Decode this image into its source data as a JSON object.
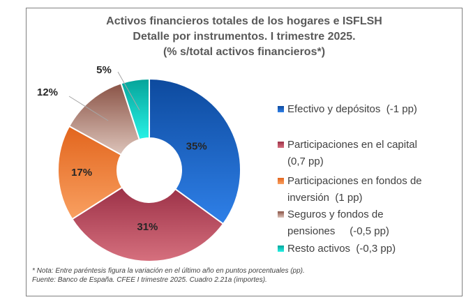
{
  "footnote": "* Nota: Entre paréntesis figura la variación en el último año en puntos porcentuales (pp).\nFuente: Banco de España. CFEE I trimestre 2025. Cuadro 2.21a (importes).",
  "colors": {
    "title_text": "#595959",
    "legend_text": "#404040",
    "pct_label_text": "#262626",
    "panel_border": "#808080",
    "leader_line": "#a6a6a6",
    "background": "#ffffff"
  },
  "chart_data": {
    "type": "pie",
    "variant": "donut",
    "title": "Activos financieros totales de los hogares e ISFLSH\nDetalle por instrumentos. I trimestre 2025.\n(% s/total activos financieros*)",
    "unit": "% s/total activos financieros",
    "legend_position": "right",
    "start_angle_deg": 0,
    "direction": "clockwise",
    "slices": [
      {
        "name": "Efectivo y depósitos",
        "value": 35,
        "pct_label": "35%",
        "variation": "-1 pp",
        "legend_label": "Efectivo y depósitos  (-1 pp)",
        "color_top": "#0d4a9e",
        "color_bottom": "#2f80e8"
      },
      {
        "name": "Participaciones en el capital",
        "value": 31,
        "pct_label": "31%",
        "variation": "0,7 pp",
        "legend_label": "Participaciones en el capital\n(0,7 pp)",
        "color_top": "#9c3147",
        "color_bottom": "#d6707e"
      },
      {
        "name": "Participaciones en fondos de inversión",
        "value": 17,
        "pct_label": "17%",
        "variation": "1 pp",
        "legend_label": "Participaciones en fondos de\ninversión  (1 pp)",
        "color_top": "#e2651d",
        "color_bottom": "#f9a061"
      },
      {
        "name": "Seguros y fondos de pensiones",
        "value": 12,
        "pct_label": "12%",
        "variation": "-0,5 pp",
        "legend_label": "Seguros y fondos de\npensiones     (-0,5 pp)",
        "color_top": "#8a5346",
        "color_bottom": "#ddc4ba"
      },
      {
        "name": "Resto activos",
        "value": 5,
        "pct_label": "5%",
        "variation": "-0,3 pp",
        "legend_label": "Resto activos  (-0,3 pp)",
        "color_top": "#05a399",
        "color_bottom": "#28f2e6"
      }
    ]
  }
}
